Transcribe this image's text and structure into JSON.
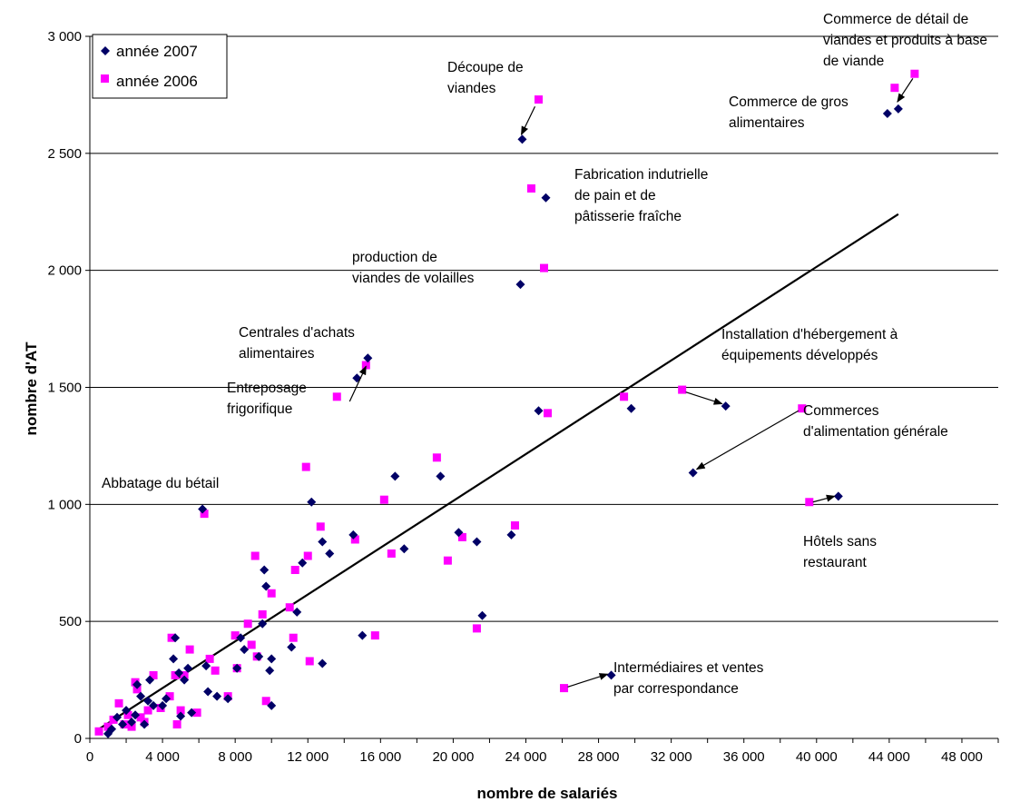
{
  "colors": {
    "series_2007": "#000066",
    "series_2006": "#FF00FF",
    "gridline": "#000000",
    "trendline": "#000000"
  },
  "chart_data": {
    "type": "scatter",
    "title": "",
    "xlabel": "nombre de salariés",
    "ylabel": "nombre d'AT",
    "xlim": [
      0,
      50000
    ],
    "ylim": [
      0,
      3000
    ],
    "x_ticks": [
      0,
      4000,
      8000,
      12000,
      16000,
      20000,
      24000,
      28000,
      32000,
      36000,
      40000,
      44000,
      48000
    ],
    "x_tick_labels": [
      "0",
      "4 000",
      "8 000",
      "12 000",
      "16 000",
      "20 000",
      "24 000",
      "28 000",
      "32 000",
      "36 000",
      "40 000",
      "44 000",
      "48 000"
    ],
    "y_ticks": [
      0,
      500,
      1000,
      1500,
      2000,
      2500,
      3000
    ],
    "y_tick_labels": [
      "0",
      "500",
      "1 000",
      "1 500",
      "2 000",
      "2 500",
      "3 000"
    ],
    "grid": "horizontal",
    "legend_position": "top-left",
    "trendline": {
      "x": [
        500,
        44500
      ],
      "y": [
        40,
        2240
      ]
    },
    "series": [
      {
        "name": "année 2007",
        "marker": "diamond",
        "points": [
          [
            1000,
            20
          ],
          [
            1200,
            40
          ],
          [
            1500,
            90
          ],
          [
            1800,
            60
          ],
          [
            2000,
            120
          ],
          [
            2300,
            70
          ],
          [
            2500,
            100
          ],
          [
            2600,
            230
          ],
          [
            2800,
            180
          ],
          [
            3000,
            60
          ],
          [
            3200,
            160
          ],
          [
            3300,
            250
          ],
          [
            3500,
            140
          ],
          [
            4000,
            140
          ],
          [
            4200,
            170
          ],
          [
            4600,
            340
          ],
          [
            4700,
            430
          ],
          [
            4900,
            280
          ],
          [
            5000,
            95
          ],
          [
            5200,
            250
          ],
          [
            5400,
            300
          ],
          [
            5600,
            110
          ],
          [
            6200,
            980
          ],
          [
            6400,
            310
          ],
          [
            6500,
            200
          ],
          [
            7000,
            180
          ],
          [
            7600,
            170
          ],
          [
            8100,
            300
          ],
          [
            8300,
            430
          ],
          [
            8500,
            380
          ],
          [
            9300,
            350
          ],
          [
            9500,
            490
          ],
          [
            9600,
            720
          ],
          [
            9700,
            650
          ],
          [
            9900,
            290
          ],
          [
            10000,
            340
          ],
          [
            10000,
            140
          ],
          [
            11100,
            390
          ],
          [
            11400,
            540
          ],
          [
            11700,
            750
          ],
          [
            12200,
            1010
          ],
          [
            12800,
            840
          ],
          [
            13200,
            790
          ],
          [
            12800,
            320
          ],
          [
            14500,
            870
          ],
          [
            15000,
            440
          ],
          [
            16800,
            1120
          ],
          [
            17300,
            810
          ],
          [
            19300,
            1120
          ],
          [
            20300,
            880
          ],
          [
            21300,
            840
          ],
          [
            21600,
            525
          ],
          [
            23200,
            870
          ],
          [
            23700,
            1940
          ],
          [
            23800,
            2560
          ],
          [
            24700,
            1400
          ],
          [
            25100,
            2310
          ],
          [
            28700,
            270
          ],
          [
            29800,
            1410
          ],
          [
            33200,
            1135
          ],
          [
            35000,
            1420
          ],
          [
            41200,
            1035
          ],
          [
            43900,
            2670
          ],
          [
            44500,
            2690
          ],
          [
            15300,
            1625
          ],
          [
            14700,
            1540
          ]
        ]
      },
      {
        "name": "année 2006",
        "marker": "square",
        "points": [
          [
            500,
            30
          ],
          [
            1000,
            50
          ],
          [
            1300,
            80
          ],
          [
            1600,
            150
          ],
          [
            1900,
            60
          ],
          [
            2100,
            100
          ],
          [
            2300,
            50
          ],
          [
            2500,
            240
          ],
          [
            2600,
            210
          ],
          [
            2800,
            90
          ],
          [
            3000,
            70
          ],
          [
            3200,
            120
          ],
          [
            3500,
            270
          ],
          [
            3900,
            130
          ],
          [
            4400,
            180
          ],
          [
            4500,
            430
          ],
          [
            4700,
            270
          ],
          [
            4800,
            60
          ],
          [
            5000,
            120
          ],
          [
            5200,
            270
          ],
          [
            5500,
            380
          ],
          [
            5900,
            110
          ],
          [
            6300,
            960
          ],
          [
            6600,
            340
          ],
          [
            6900,
            290
          ],
          [
            7600,
            180
          ],
          [
            8000,
            440
          ],
          [
            8100,
            300
          ],
          [
            8700,
            490
          ],
          [
            8900,
            400
          ],
          [
            9100,
            780
          ],
          [
            9200,
            350
          ],
          [
            9500,
            530
          ],
          [
            9700,
            160
          ],
          [
            10000,
            620
          ],
          [
            11000,
            560
          ],
          [
            11200,
            430
          ],
          [
            11300,
            720
          ],
          [
            11900,
            1160
          ],
          [
            12000,
            780
          ],
          [
            12100,
            330
          ],
          [
            12700,
            905
          ],
          [
            14600,
            850
          ],
          [
            15700,
            440
          ],
          [
            16200,
            1020
          ],
          [
            16600,
            790
          ],
          [
            19100,
            1200
          ],
          [
            19700,
            760
          ],
          [
            20500,
            860
          ],
          [
            21300,
            470
          ],
          [
            23400,
            910
          ],
          [
            24300,
            2350
          ],
          [
            24700,
            2730
          ],
          [
            25000,
            2010
          ],
          [
            25200,
            1390
          ],
          [
            26100,
            215
          ],
          [
            29400,
            1460
          ],
          [
            32600,
            1490
          ],
          [
            39200,
            1410
          ],
          [
            39600,
            1010
          ],
          [
            44300,
            2780
          ],
          [
            45400,
            2840
          ],
          [
            15200,
            1595
          ],
          [
            13600,
            1460
          ]
        ]
      }
    ],
    "annotations": [
      {
        "lines": [
          "Découpe de",
          "viandes"
        ]
      },
      {
        "lines": [
          "Commerce de détail de",
          "viandes et produits à base",
          "de viande"
        ]
      },
      {
        "lines": [
          "Commerce de gros",
          "alimentaires"
        ]
      },
      {
        "lines": [
          "Fabrication indutrielle",
          "de pain et de",
          "pâtisserie fraîche"
        ]
      },
      {
        "lines": [
          "production de",
          "viandes de volailles"
        ]
      },
      {
        "lines": [
          "Centrales d'achats",
          "alimentaires"
        ]
      },
      {
        "lines": [
          "Entreposage",
          "frigorifique"
        ]
      },
      {
        "lines": [
          "Installation d'hébergement à",
          "équipements développés"
        ]
      },
      {
        "lines": [
          "Commerces",
          "d'alimentation générale"
        ]
      },
      {
        "lines": [
          "Abbatage du bétail"
        ]
      },
      {
        "lines": [
          "Hôtels sans",
          "restaurant"
        ]
      },
      {
        "lines": [
          "Intermédiaires et ventes",
          "par correspondance"
        ]
      }
    ]
  }
}
